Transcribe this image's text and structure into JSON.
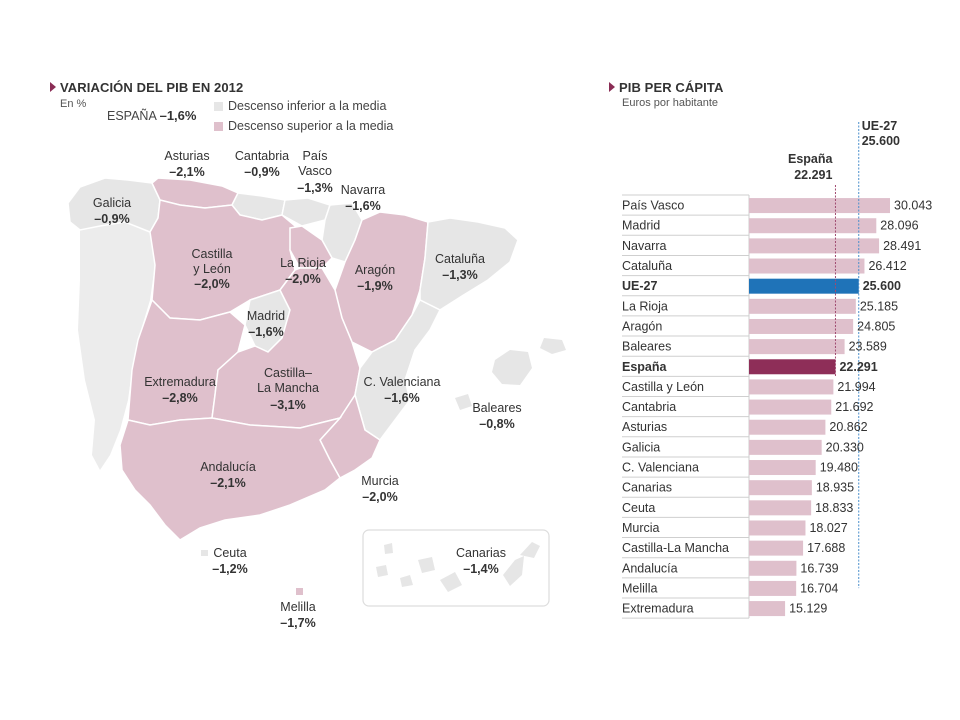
{
  "map_panel": {
    "title": "VARIACIÓN DEL PIB EN 2012",
    "subtitle": "En %",
    "spain_label": "ESPAÑA",
    "spain_value": "–1,6%",
    "legend": [
      {
        "label": "Descenso inferior a la media",
        "color": "#e6e6e6"
      },
      {
        "label": "Descenso superior a la media",
        "color": "#dfc0cc"
      }
    ]
  },
  "bar_panel": {
    "title": "PIB PER CÁPITA",
    "subtitle": "Euros por habitante",
    "ref_ue_name": "UE-27",
    "ref_ue_value": "25.600",
    "ref_es_name": "España",
    "ref_es_value": "22.291"
  },
  "colors": {
    "highlight": "#dfc0cc",
    "below": "#e6e6e6",
    "ue_bar": "#1f73b8",
    "es_bar": "#8e2e58",
    "bar_default": "#dfc0cc"
  },
  "chart_data": [
    {
      "type": "map",
      "title": "VARIACIÓN DEL PIB EN 2012",
      "unit": "En %",
      "regions": [
        {
          "name": "Asturias",
          "value": -2.1,
          "label": "–2,1%",
          "group": "superior"
        },
        {
          "name": "Cantabria",
          "value": -0.9,
          "label": "–0,9%",
          "group": "inferior"
        },
        {
          "name": "País Vasco",
          "value": -1.3,
          "label": "–1,3%",
          "group": "inferior"
        },
        {
          "name": "Galicia",
          "value": -0.9,
          "label": "–0,9%",
          "group": "inferior"
        },
        {
          "name": "Navarra",
          "value": -1.6,
          "label": "–1,6%",
          "group": "inferior"
        },
        {
          "name": "Castilla y León",
          "value": -2.0,
          "label": "–2,0%",
          "group": "superior"
        },
        {
          "name": "La Rioja",
          "value": -2.0,
          "label": "–2,0%",
          "group": "superior"
        },
        {
          "name": "Aragón",
          "value": -1.9,
          "label": "–1,9%",
          "group": "superior"
        },
        {
          "name": "Cataluña",
          "value": -1.3,
          "label": "–1,3%",
          "group": "inferior"
        },
        {
          "name": "Madrid",
          "value": -1.6,
          "label": "–1,6%",
          "group": "inferior"
        },
        {
          "name": "Extremadura",
          "value": -2.8,
          "label": "–2,8%",
          "group": "superior"
        },
        {
          "name": "Castilla–La Mancha",
          "value": -3.1,
          "label": "–3,1%",
          "group": "superior"
        },
        {
          "name": "C. Valenciana",
          "value": -1.6,
          "label": "–1,6%",
          "group": "inferior"
        },
        {
          "name": "Baleares",
          "value": -0.8,
          "label": "–0,8%",
          "group": "inferior"
        },
        {
          "name": "Andalucía",
          "value": -2.1,
          "label": "–2,1%",
          "group": "superior"
        },
        {
          "name": "Murcia",
          "value": -2.0,
          "label": "–2,0%",
          "group": "superior"
        },
        {
          "name": "Ceuta",
          "value": -1.2,
          "label": "–1,2%",
          "group": "inferior"
        },
        {
          "name": "Canarias",
          "value": -1.4,
          "label": "–1,4%",
          "group": "inferior"
        },
        {
          "name": "Melilla",
          "value": -1.7,
          "label": "–1,7%",
          "group": "superior"
        }
      ]
    },
    {
      "type": "bar",
      "orientation": "horizontal",
      "title": "PIB PER CÁPITA",
      "unit": "Euros por habitante",
      "reference_lines": [
        {
          "name": "UE-27",
          "value": 25600,
          "label": "25.600"
        },
        {
          "name": "España",
          "value": 22291,
          "label": "22.291"
        }
      ],
      "categories": [
        "País Vasco",
        "Madrid",
        "Navarra",
        "Cataluña",
        "UE-27",
        "La Rioja",
        "Aragón",
        "Baleares",
        "España",
        "Castilla y León",
        "Cantabria",
        "Asturias",
        "Galicia",
        "C. Valenciana",
        "Canarias",
        "Ceuta",
        "Murcia",
        "Castilla-La Mancha",
        "Andalucía",
        "Melilla",
        "Extremadura"
      ],
      "values": [
        30043,
        28096,
        28491,
        26412,
        25600,
        25185,
        24805,
        23589,
        22291,
        21994,
        21692,
        20862,
        20330,
        19480,
        18935,
        18833,
        18027,
        17688,
        16739,
        16704,
        15129
      ],
      "value_labels": [
        "30.043",
        "28.096",
        "28.491",
        "26.412",
        "25.600",
        "25.185",
        "24.805",
        "23.589",
        "22.291",
        "21.994",
        "21.692",
        "20.862",
        "20.330",
        "19.480",
        "18.935",
        "18.833",
        "18.027",
        "17.688",
        "16.739",
        "16.704",
        "15.129"
      ]
    }
  ]
}
